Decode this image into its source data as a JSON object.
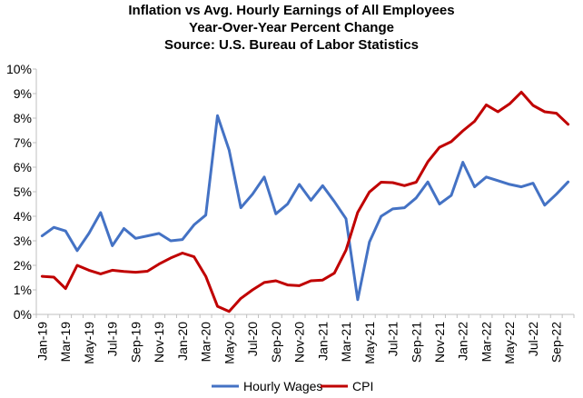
{
  "chart_data": {
    "type": "line",
    "title": "Inflation vs Avg. Hourly Earnings of All Employees",
    "subtitle": "Year-Over-Year Percent Change",
    "source": "Source: U.S. Bureau of Labor Statistics",
    "ylim": [
      0,
      10
    ],
    "yticks": [
      "0%",
      "1%",
      "2%",
      "3%",
      "4%",
      "5%",
      "6%",
      "7%",
      "8%",
      "9%",
      "10%"
    ],
    "grid": false,
    "legend": "bottom",
    "x_tick_labels": [
      "Jan-19",
      "Mar-19",
      "May-19",
      "Jul-19",
      "Sep-19",
      "Nov-19",
      "Jan-20",
      "Mar-20",
      "May-20",
      "Jul-20",
      "Sep-20",
      "Nov-20",
      "Jan-21",
      "Mar-21",
      "May-21",
      "Jul-21",
      "Sep-21",
      "Nov-21",
      "Jan-22",
      "Mar-22",
      "May-22",
      "Jul-22",
      "Sep-22"
    ],
    "x": [
      "Jan-19",
      "Feb-19",
      "Mar-19",
      "Apr-19",
      "May-19",
      "Jun-19",
      "Jul-19",
      "Aug-19",
      "Sep-19",
      "Oct-19",
      "Nov-19",
      "Dec-19",
      "Jan-20",
      "Feb-20",
      "Mar-20",
      "Apr-20",
      "May-20",
      "Jun-20",
      "Jul-20",
      "Aug-20",
      "Sep-20",
      "Oct-20",
      "Nov-20",
      "Dec-20",
      "Jan-21",
      "Feb-21",
      "Mar-21",
      "Apr-21",
      "May-21",
      "Jun-21",
      "Jul-21",
      "Aug-21",
      "Sep-21",
      "Oct-21",
      "Nov-21",
      "Dec-21",
      "Jan-22",
      "Feb-22",
      "Mar-22",
      "Apr-22",
      "May-22",
      "Jun-22",
      "Jul-22",
      "Aug-22",
      "Sep-22",
      "Oct-22"
    ],
    "series": [
      {
        "name": "Hourly Wages",
        "color": "#4472C4",
        "values": [
          3.2,
          3.55,
          3.4,
          2.6,
          3.3,
          4.15,
          2.8,
          3.5,
          3.1,
          3.2,
          3.3,
          3.0,
          3.05,
          3.65,
          4.05,
          8.1,
          6.7,
          4.35,
          4.9,
          5.6,
          4.1,
          4.5,
          5.3,
          4.65,
          5.25,
          4.6,
          3.9,
          0.6,
          2.95,
          4.0,
          4.3,
          4.35,
          4.75,
          5.4,
          4.5,
          4.85,
          6.2,
          5.2,
          5.6,
          5.45,
          5.3,
          5.2,
          5.35,
          4.45,
          4.9,
          5.4
        ]
      },
      {
        "name": "CPI",
        "color": "#C00000",
        "values": [
          1.55,
          1.52,
          1.05,
          2.0,
          1.8,
          1.65,
          1.8,
          1.75,
          1.72,
          1.76,
          2.05,
          2.3,
          2.5,
          2.35,
          1.55,
          0.33,
          0.12,
          0.65,
          1.0,
          1.3,
          1.37,
          1.2,
          1.17,
          1.37,
          1.4,
          1.68,
          2.62,
          4.16,
          4.99,
          5.39,
          5.37,
          5.25,
          5.39,
          6.22,
          6.81,
          7.04,
          7.48,
          7.87,
          8.54,
          8.26,
          8.58,
          9.06,
          8.52,
          8.26,
          8.2,
          7.75
        ]
      }
    ]
  }
}
